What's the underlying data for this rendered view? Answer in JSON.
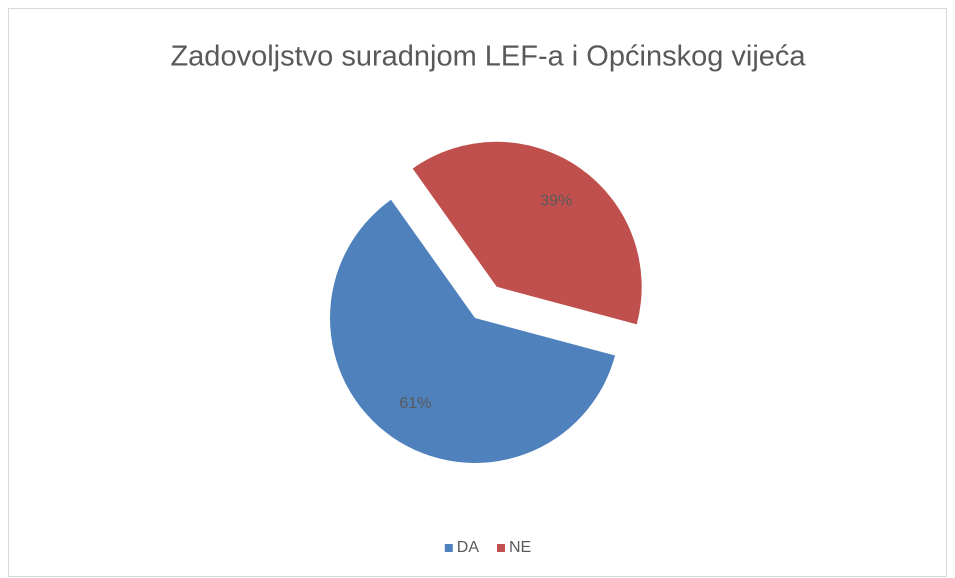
{
  "chart_data": {
    "type": "pie",
    "title": "Zadovoljstvo suradnjom LEF-a i Općinskog vijeća",
    "categories": [
      "DA",
      "NE"
    ],
    "values": [
      61,
      39
    ],
    "value_labels": [
      "61%",
      "39%"
    ],
    "colors": [
      "#4f81bd",
      "#c0504d"
    ],
    "exploded": [
      false,
      true
    ],
    "legend": "bottom"
  }
}
